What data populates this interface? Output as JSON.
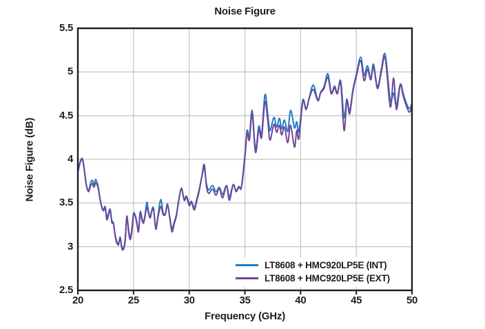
{
  "colors": {
    "series_int": "#1e7dc2",
    "series_ext": "#6f4698",
    "grid": "#c7c7c7",
    "axis": "#1d1d21",
    "text": "#1d1d21",
    "background": "#ffffff"
  },
  "chart_data": {
    "type": "line",
    "title": "Noise Figure",
    "xlabel": "Frequency (GHz)",
    "ylabel": "Noise Figure (dB)",
    "xlim": [
      20,
      50
    ],
    "ylim": [
      2.5,
      5.5
    ],
    "x_ticks": [
      20,
      25,
      30,
      35,
      40,
      45,
      50
    ],
    "x_tick_labels": [
      "20",
      "25",
      "30",
      "35",
      "40",
      "45",
      "50"
    ],
    "y_ticks": [
      5.5,
      5,
      4.5,
      4,
      3.5,
      3,
      2.5
    ],
    "y_tick_labels": [
      "5.5",
      "5",
      "4.5",
      "4",
      "3.5",
      "3",
      "2.5"
    ],
    "grid": true,
    "legend_position": "inside-bottom-right",
    "x": [
      20.0,
      20.2,
      20.4,
      20.55,
      20.75,
      20.95,
      21.15,
      21.3,
      21.45,
      21.6,
      21.8,
      22.0,
      22.15,
      22.3,
      22.45,
      22.6,
      22.75,
      22.9,
      23.05,
      23.2,
      23.35,
      23.5,
      23.65,
      23.8,
      23.95,
      24.1,
      24.25,
      24.4,
      24.55,
      24.7,
      24.85,
      25.0,
      25.15,
      25.3,
      25.45,
      25.6,
      25.75,
      25.9,
      26.05,
      26.2,
      26.35,
      26.5,
      26.65,
      26.8,
      27.0,
      27.2,
      27.45,
      27.65,
      27.85,
      28.05,
      28.25,
      28.45,
      28.65,
      28.85,
      29.05,
      29.3,
      29.55,
      29.75,
      30.0,
      30.2,
      30.45,
      30.65,
      30.9,
      31.15,
      31.35,
      31.55,
      31.75,
      32.1,
      32.4,
      32.7,
      33.0,
      33.35,
      33.6,
      33.95,
      34.2,
      34.45,
      34.65,
      34.8,
      35.0,
      35.2,
      35.4,
      35.65,
      35.95,
      36.25,
      36.5,
      36.8,
      37.05,
      37.25,
      37.6,
      37.85,
      38.1,
      38.3,
      38.55,
      38.85,
      39.1,
      39.45,
      39.65,
      39.85,
      40.2,
      40.5,
      40.8,
      41.15,
      41.55,
      41.8,
      42.1,
      42.45,
      42.75,
      43.05,
      43.3,
      43.6,
      43.9,
      44.15,
      44.4,
      44.7,
      45.0,
      45.4,
      45.7,
      46.0,
      46.3,
      46.55,
      46.9,
      47.25,
      47.6,
      48.05,
      48.35,
      48.6,
      48.95,
      49.2,
      49.45,
      49.75,
      50.0
    ],
    "series": [
      {
        "name": "LT8608 + HMC920LP5E (INT)",
        "color": "#1e7dc2",
        "values": [
          3.85,
          3.97,
          4.01,
          3.92,
          3.72,
          3.64,
          3.73,
          3.76,
          3.71,
          3.77,
          3.7,
          3.55,
          3.46,
          3.42,
          3.46,
          3.34,
          3.38,
          3.43,
          3.3,
          3.27,
          3.13,
          3.06,
          3.02,
          3.11,
          3.0,
          2.98,
          3.09,
          3.34,
          3.2,
          3.1,
          3.2,
          3.38,
          3.36,
          3.28,
          3.19,
          3.4,
          3.33,
          3.28,
          3.38,
          3.51,
          3.4,
          3.34,
          3.42,
          3.44,
          3.22,
          3.36,
          3.54,
          3.39,
          3.38,
          3.49,
          3.34,
          3.21,
          3.28,
          3.37,
          3.53,
          3.66,
          3.54,
          3.58,
          3.49,
          3.52,
          3.45,
          3.53,
          3.66,
          3.81,
          3.9,
          3.72,
          3.65,
          3.7,
          3.63,
          3.68,
          3.6,
          3.7,
          3.57,
          3.71,
          3.64,
          3.69,
          3.67,
          3.8,
          4.05,
          4.33,
          4.26,
          4.56,
          4.12,
          4.38,
          4.29,
          4.74,
          4.52,
          4.33,
          4.48,
          4.37,
          4.47,
          4.35,
          4.45,
          4.32,
          4.56,
          4.36,
          4.43,
          4.32,
          4.68,
          4.58,
          4.72,
          4.85,
          4.68,
          4.77,
          4.83,
          4.98,
          4.76,
          4.84,
          4.76,
          4.9,
          4.48,
          4.69,
          4.55,
          4.8,
          4.97,
          5.17,
          4.96,
          5.07,
          4.93,
          5.09,
          4.83,
          5.03,
          5.2,
          4.68,
          4.76,
          4.62,
          4.86,
          4.76,
          4.66,
          4.58,
          4.64
        ]
      },
      {
        "name": "LT8608 + HMC920LP5E (EXT)",
        "color": "#6f4698",
        "values": [
          3.85,
          3.96,
          4.0,
          3.9,
          3.71,
          3.63,
          3.7,
          3.72,
          3.68,
          3.73,
          3.68,
          3.54,
          3.45,
          3.41,
          3.45,
          3.31,
          3.36,
          3.42,
          3.28,
          3.26,
          3.12,
          3.04,
          3.03,
          3.1,
          2.98,
          2.97,
          3.06,
          3.35,
          3.17,
          3.08,
          3.17,
          3.36,
          3.35,
          3.26,
          3.17,
          3.38,
          3.31,
          3.27,
          3.36,
          3.45,
          3.38,
          3.33,
          3.41,
          3.43,
          3.2,
          3.34,
          3.46,
          3.37,
          3.37,
          3.48,
          3.33,
          3.17,
          3.26,
          3.35,
          3.52,
          3.67,
          3.53,
          3.57,
          3.47,
          3.51,
          3.42,
          3.51,
          3.64,
          3.82,
          3.94,
          3.69,
          3.61,
          3.66,
          3.59,
          3.67,
          3.56,
          3.7,
          3.53,
          3.71,
          3.63,
          3.68,
          3.66,
          3.78,
          4.02,
          4.3,
          4.22,
          4.52,
          4.08,
          4.34,
          4.25,
          4.66,
          4.45,
          4.22,
          4.4,
          4.31,
          4.39,
          4.28,
          4.37,
          4.19,
          4.39,
          4.14,
          4.33,
          4.24,
          4.66,
          4.57,
          4.71,
          4.8,
          4.67,
          4.76,
          4.81,
          4.94,
          4.75,
          4.82,
          4.75,
          4.87,
          4.33,
          4.67,
          4.52,
          4.78,
          4.95,
          5.13,
          4.9,
          5.03,
          4.91,
          5.06,
          4.81,
          5.0,
          5.16,
          4.6,
          4.93,
          4.57,
          4.85,
          4.73,
          4.63,
          4.54,
          4.6
        ]
      }
    ]
  }
}
